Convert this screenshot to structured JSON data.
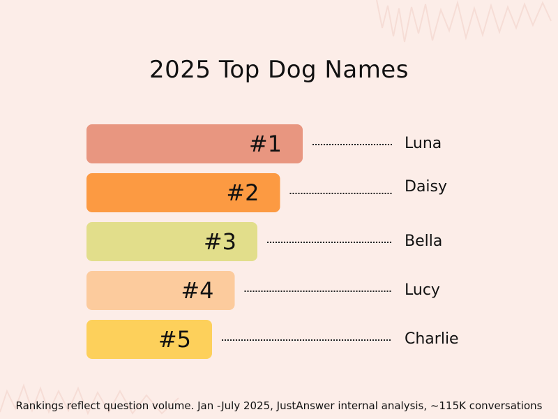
{
  "title": "2025 Top Dog Names",
  "footnote": "Rankings reflect question volume. Jan -July 2025, JustAnswer internal analysis, ~115K conversations",
  "chart_data": {
    "type": "bar",
    "orientation": "horizontal",
    "categories": [
      "Luna",
      "Daisy",
      "Bella",
      "Lucy",
      "Charlie"
    ],
    "rank_labels": [
      "#1",
      "#2",
      "#3",
      "#4",
      "#5"
    ],
    "values": [
      1,
      2,
      3,
      4,
      5
    ],
    "colors": [
      "#e89680",
      "#fc9a42",
      "#e2de8b",
      "#fccb9d",
      "#fdd05b"
    ],
    "title": "2025 Top Dog Names",
    "legend": "none",
    "grid": false
  }
}
